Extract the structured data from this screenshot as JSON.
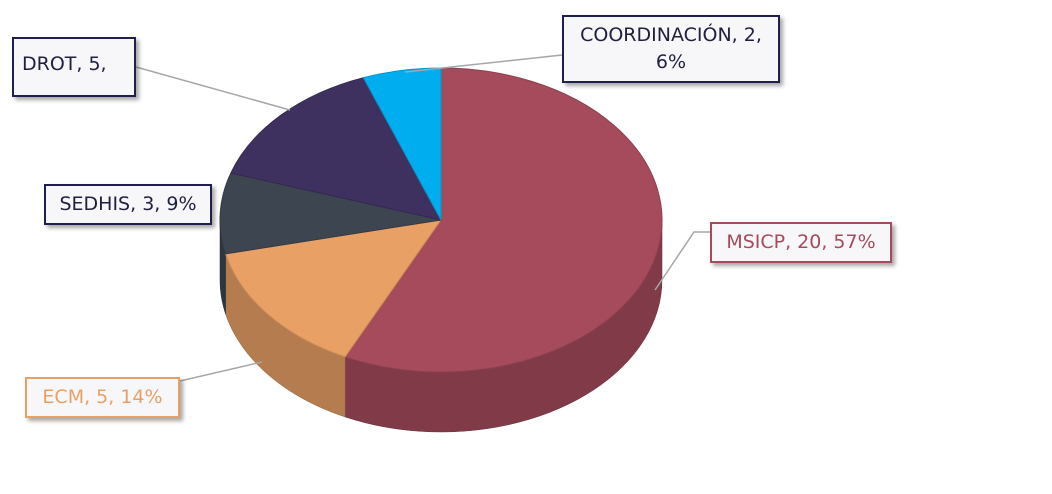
{
  "chart_data": {
    "type": "pie",
    "categories": [
      "MSICP",
      "ECM",
      "SEDHIS",
      "DROT",
      "COORDINACIÓN"
    ],
    "values": [
      20,
      5,
      3,
      5,
      2
    ],
    "value_labels": [
      "MSICP, 20, 57%",
      "ECM, 5, 14%",
      "SEDHIS, 3, 9%",
      "DROT, 5,",
      "COORDINACIÓN, 2, 6%"
    ],
    "colors": [
      "#a54b5c",
      "#e8a065",
      "#3d4550",
      "#3e3160",
      "#00aeef"
    ]
  }
}
